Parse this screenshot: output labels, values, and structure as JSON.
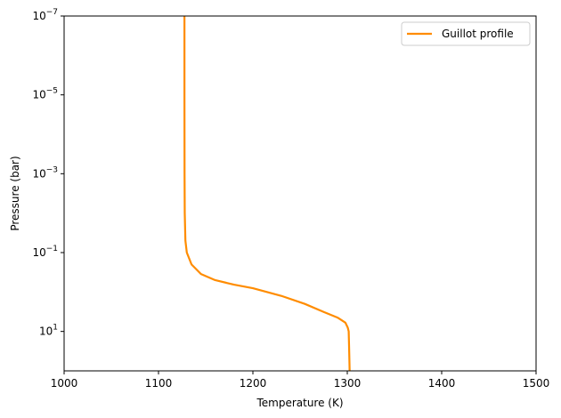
{
  "chart_data": {
    "type": "line",
    "xlabel": "Temperature (K)",
    "ylabel": "Pressure (bar)",
    "xlim": [
      1000,
      1500
    ],
    "ylim": [
      100,
      1e-07
    ],
    "y_scale": "log",
    "y_inverted": true,
    "x_ticks": [
      {
        "value": 1000,
        "label": "1000"
      },
      {
        "value": 1100,
        "label": "1100"
      },
      {
        "value": 1200,
        "label": "1200"
      },
      {
        "value": 1300,
        "label": "1300"
      },
      {
        "value": 1400,
        "label": "1400"
      },
      {
        "value": 1500,
        "label": "1500"
      }
    ],
    "y_ticks": [
      {
        "value": 1e-07,
        "base": "10",
        "exp": "−7"
      },
      {
        "value": 1e-05,
        "base": "10",
        "exp": "−5"
      },
      {
        "value": 0.001,
        "base": "10",
        "exp": "−3"
      },
      {
        "value": 0.1,
        "base": "10",
        "exp": "−1"
      },
      {
        "value": 10,
        "base": "10",
        "exp": "1"
      }
    ],
    "grid": false,
    "legend_position": "upper right",
    "series": [
      {
        "name": "Guillot profile",
        "color": "#ff8c00",
        "points": [
          [
            1127.5,
            1e-07
          ],
          [
            1127.5,
            1e-05
          ],
          [
            1127.6,
            0.001
          ],
          [
            1127.8,
            0.01
          ],
          [
            1128.5,
            0.05
          ],
          [
            1130,
            0.1
          ],
          [
            1135,
            0.2
          ],
          [
            1145,
            0.35
          ],
          [
            1160,
            0.5
          ],
          [
            1180,
            0.65
          ],
          [
            1200,
            0.8
          ],
          [
            1230,
            1.25
          ],
          [
            1255,
            2
          ],
          [
            1275,
            3.2
          ],
          [
            1290,
            4.5
          ],
          [
            1298,
            6
          ],
          [
            1300.5,
            8
          ],
          [
            1301.5,
            10
          ],
          [
            1302,
            30
          ],
          [
            1302.5,
            100
          ]
        ]
      }
    ]
  }
}
